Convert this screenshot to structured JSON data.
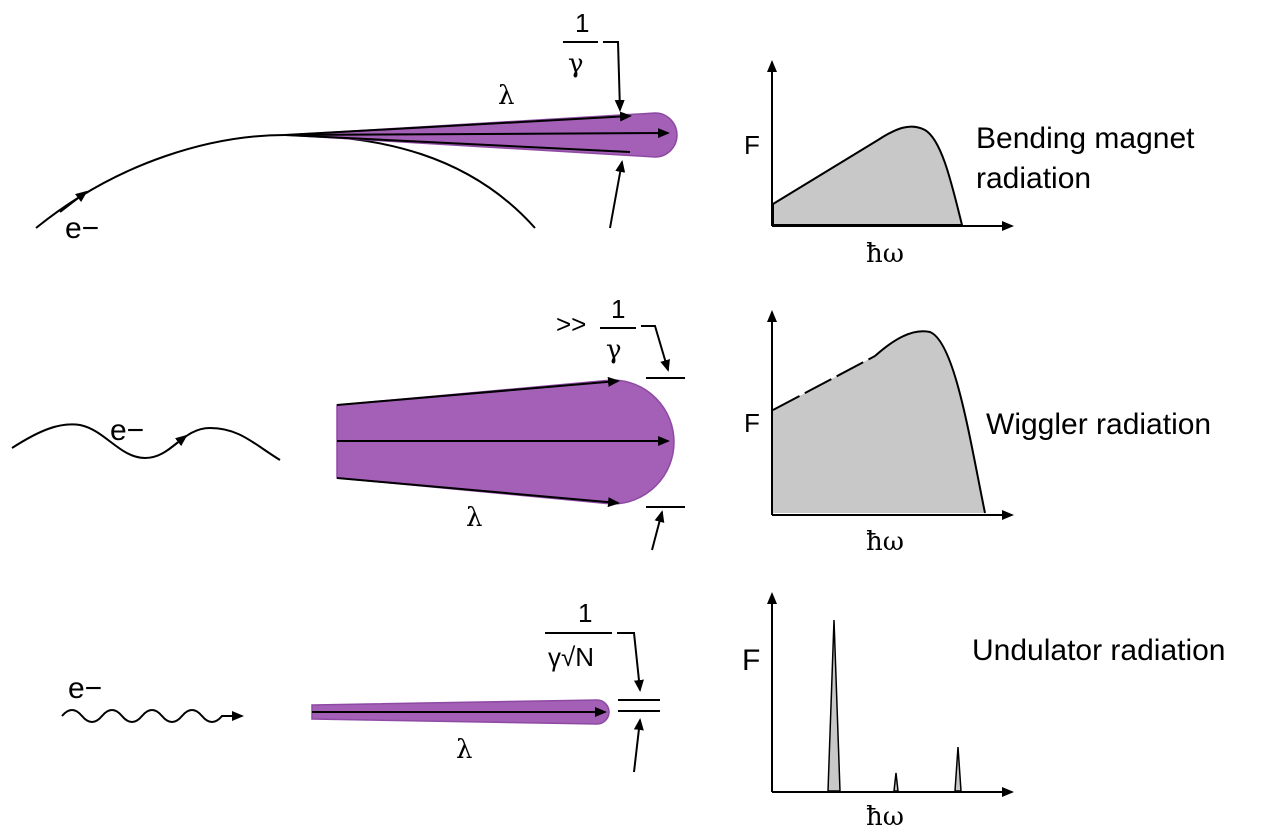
{
  "colors": {
    "beam_fill": "#a45fb7",
    "beam_edge": "#8e4aa3",
    "spectrum_fill": "#c8c8c8",
    "ink": "#000000"
  },
  "labels": {
    "electron": "e−",
    "wavelength": "λ",
    "flux": "F",
    "photon_energy": "ħω",
    "one": "1",
    "gamma": "γ",
    "much_greater": ">>",
    "gamma_sqrt_n": "γ√N"
  },
  "rows": [
    {
      "title_line1": "Bending magnet",
      "title_line2": "radiation"
    },
    {
      "title": "Wiggler radiation"
    },
    {
      "title": "Undulator radiation"
    }
  ]
}
